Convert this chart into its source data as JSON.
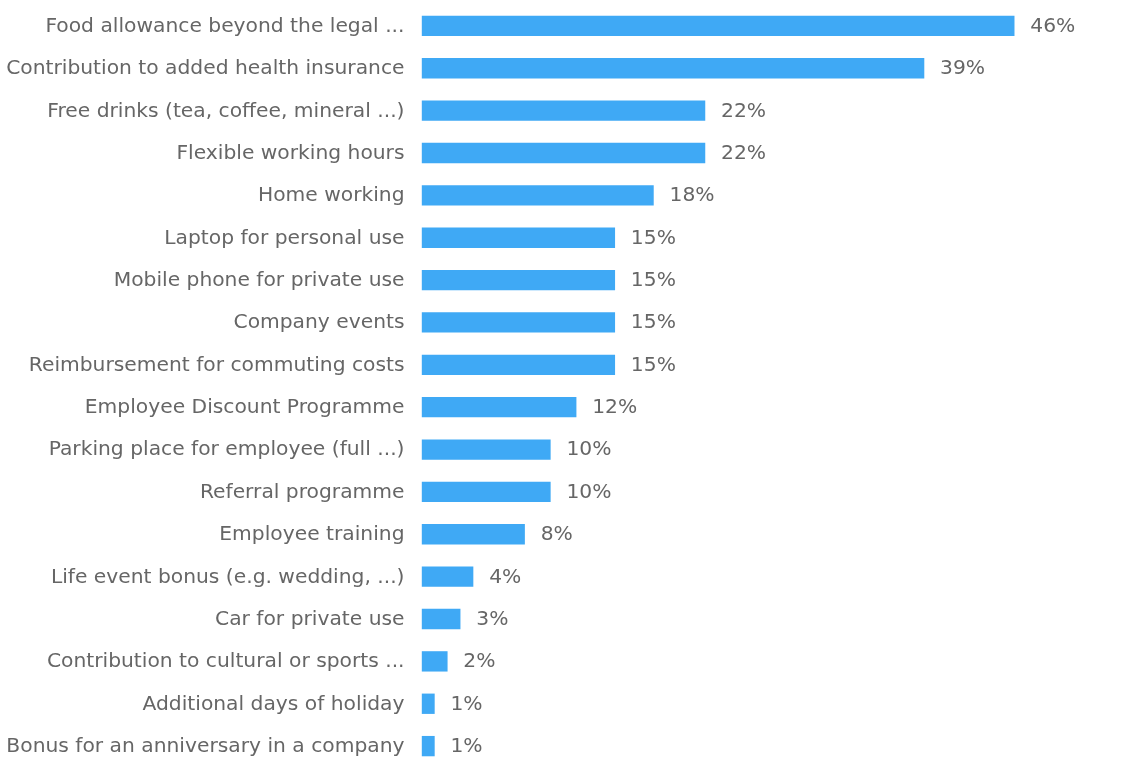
{
  "chart_data": {
    "type": "bar",
    "orientation": "horizontal",
    "categories": [
      "Food allowance beyond the legal ...",
      "Contribution to added health insurance",
      "Free drinks (tea, coffee, mineral ...)",
      "Flexible working hours",
      "Home working",
      "Laptop for personal use",
      "Mobile phone for private use",
      "Company events",
      "Reimbursement for commuting costs",
      "Employee Discount Programme",
      "Parking place for employee (full ...)",
      "Referral programme",
      "Employee training",
      "Life event bonus (e.g. wedding, ...)",
      "Car for private use",
      "Contribution to cultural or sports ...",
      "Additional days of holiday",
      "Bonus for an anniversary in a company"
    ],
    "values": [
      46,
      39,
      22,
      22,
      18,
      15,
      15,
      15,
      15,
      12,
      10,
      10,
      8,
      4,
      3,
      2,
      1,
      1
    ],
    "value_labels": [
      "46%",
      "39%",
      "22%",
      "22%",
      "18%",
      "15%",
      "15%",
      "15%",
      "15%",
      "12%",
      "10%",
      "10%",
      "8%",
      "4%",
      "3%",
      "2%",
      "1%",
      "1%"
    ],
    "color": "#3fa9f5"
  }
}
